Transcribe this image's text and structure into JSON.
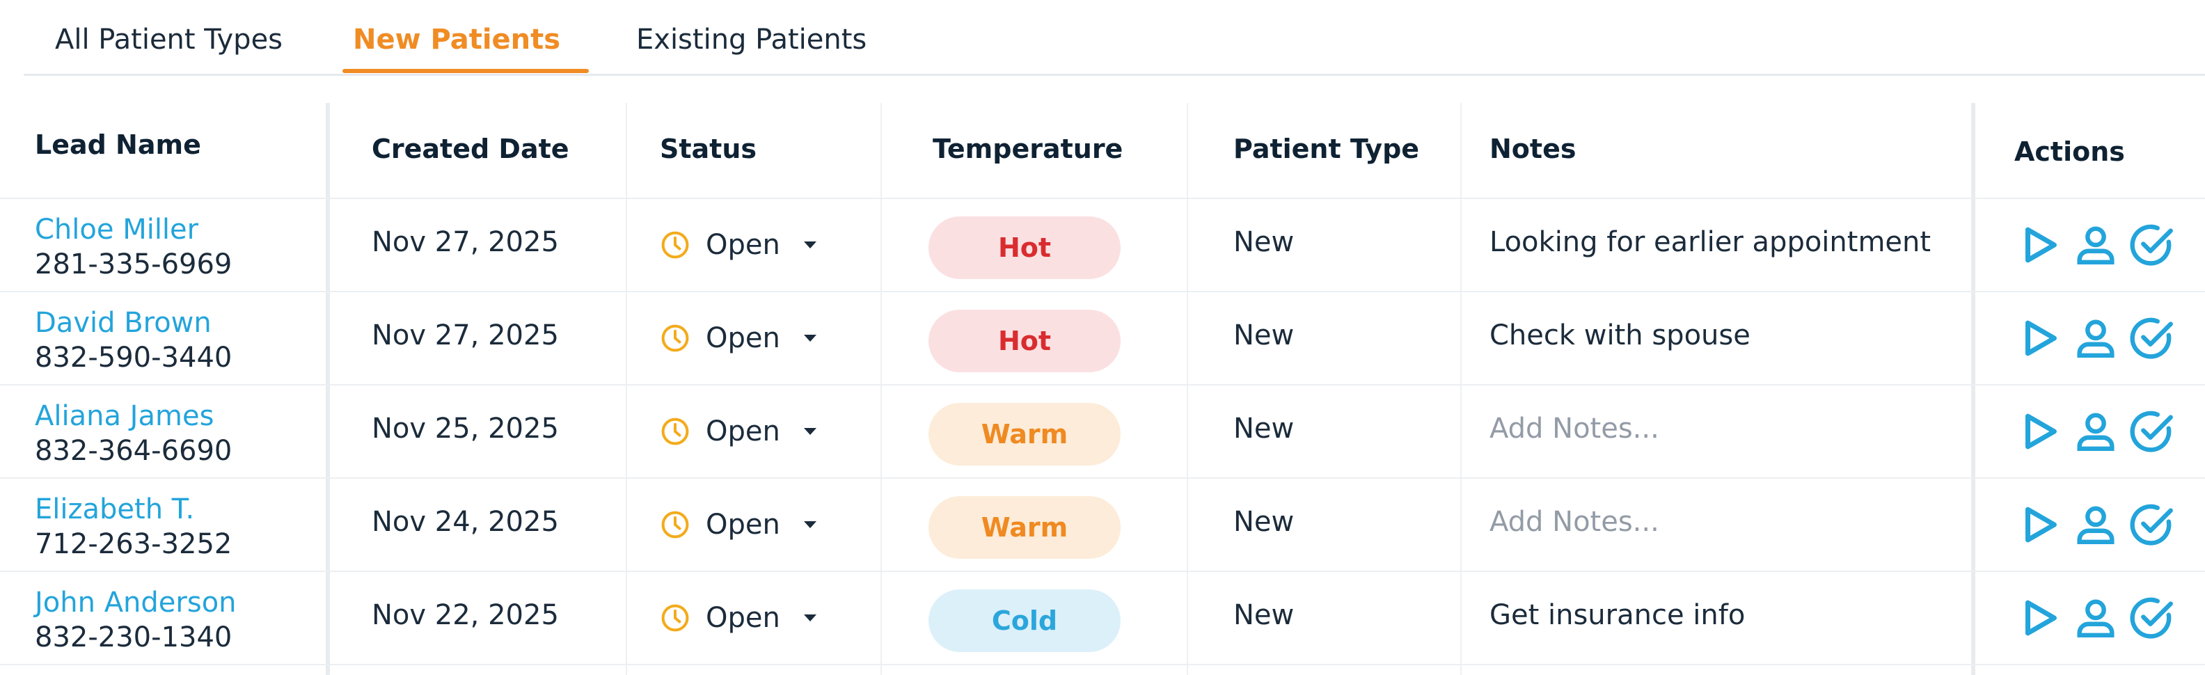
{
  "tabs": [
    {
      "label": "All Patient Types"
    },
    {
      "label": "New Patients"
    },
    {
      "label": "Existing Patients"
    }
  ],
  "columns": {
    "lead_name": "Lead Name",
    "created_date": "Created Date",
    "status": "Status",
    "temperature": "Temperature",
    "patient_type": "Patient Type",
    "notes": "Notes",
    "actions": "Actions"
  },
  "notes_placeholder": "Add Notes...",
  "colors": {
    "accent": "#f08c24",
    "link": "#23a4db",
    "hot_bg": "#fbe0e2",
    "hot_text": "#d92c2f",
    "warm_bg": "#fdecd9",
    "warm_text": "#ef8a22",
    "cold_bg": "#dcf0fa",
    "cold_text": "#2ba6dc",
    "status_icon": "#f3ab1c"
  },
  "icons": {
    "status": "clock-icon",
    "actions": [
      "play-icon",
      "user-icon",
      "check-circle-icon"
    ]
  },
  "rows": [
    {
      "name": "Chloe Miller",
      "phone": "281-335-6969",
      "date": "Nov 27, 2025",
      "status": "Open",
      "temperature": "Hot",
      "patient_type": "New",
      "notes": "Looking for earlier appointment"
    },
    {
      "name": "David Brown",
      "phone": "832-590-3440",
      "date": "Nov 27, 2025",
      "status": "Open",
      "temperature": "Hot",
      "patient_type": "New",
      "notes": "Check with spouse"
    },
    {
      "name": "Aliana James",
      "phone": "832-364-6690",
      "date": "Nov 25, 2025",
      "status": "Open",
      "temperature": "Warm",
      "patient_type": "New",
      "notes": ""
    },
    {
      "name": "Elizabeth T.",
      "phone": "712-263-3252",
      "date": "Nov 24, 2025",
      "status": "Open",
      "temperature": "Warm",
      "patient_type": "New",
      "notes": ""
    },
    {
      "name": "John Anderson",
      "phone": "832-230-1340",
      "date": "Nov 22, 2025",
      "status": "Open",
      "temperature": "Cold",
      "patient_type": "New",
      "notes": "Get insurance info"
    }
  ]
}
